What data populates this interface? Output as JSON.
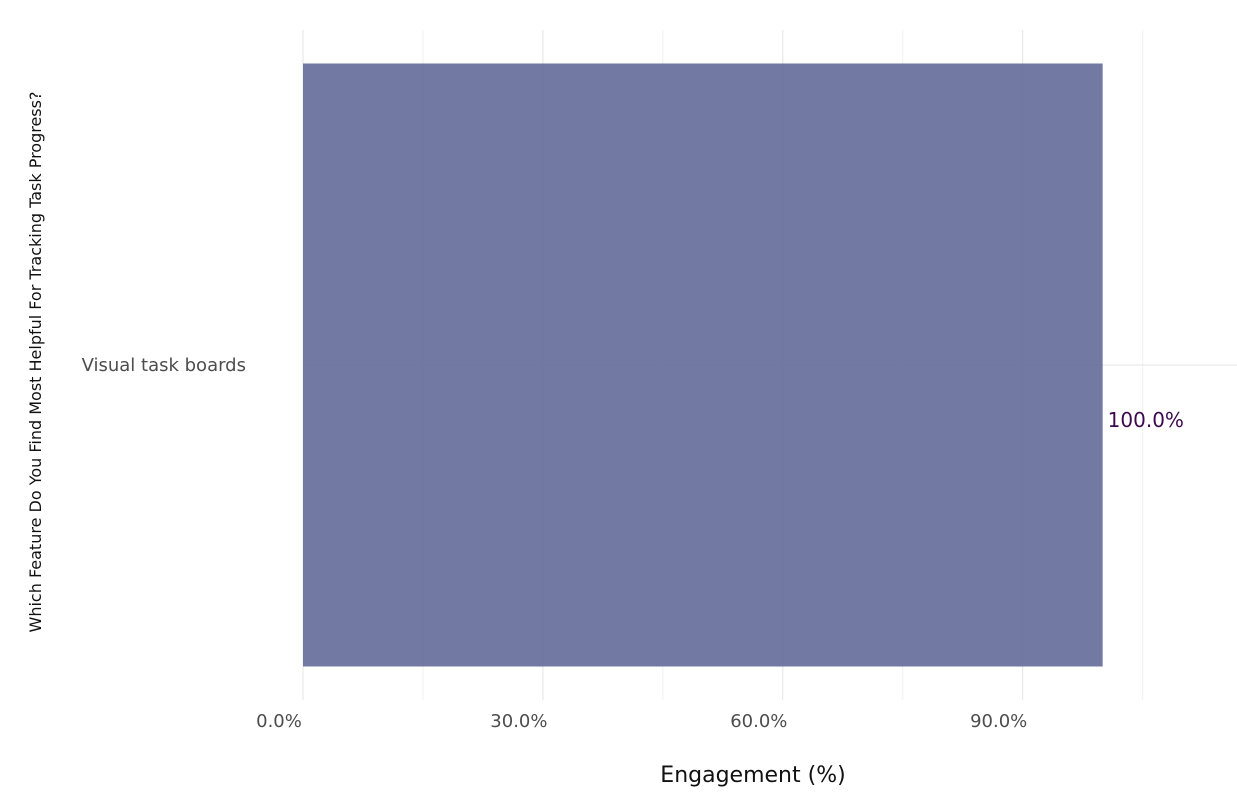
{
  "chart_data": {
    "type": "bar",
    "orientation": "horizontal",
    "categories": [
      "Visual task boards"
    ],
    "values": [
      100.0
    ],
    "value_labels": [
      "100.0%"
    ],
    "xlabel": "Engagement (%)",
    "ylabel": "Which Feature Do You Find Most Helpful For Tracking Task Progress?",
    "xlim": [
      0,
      116.8
    ],
    "x_ticks": [
      0,
      30,
      60,
      90
    ],
    "x_tick_labels": [
      "0.0%",
      "30.0%",
      "60.0%",
      "90.0%"
    ],
    "grid": true,
    "bar_color": "#666e9b",
    "label_color": "#3d0a4f"
  }
}
